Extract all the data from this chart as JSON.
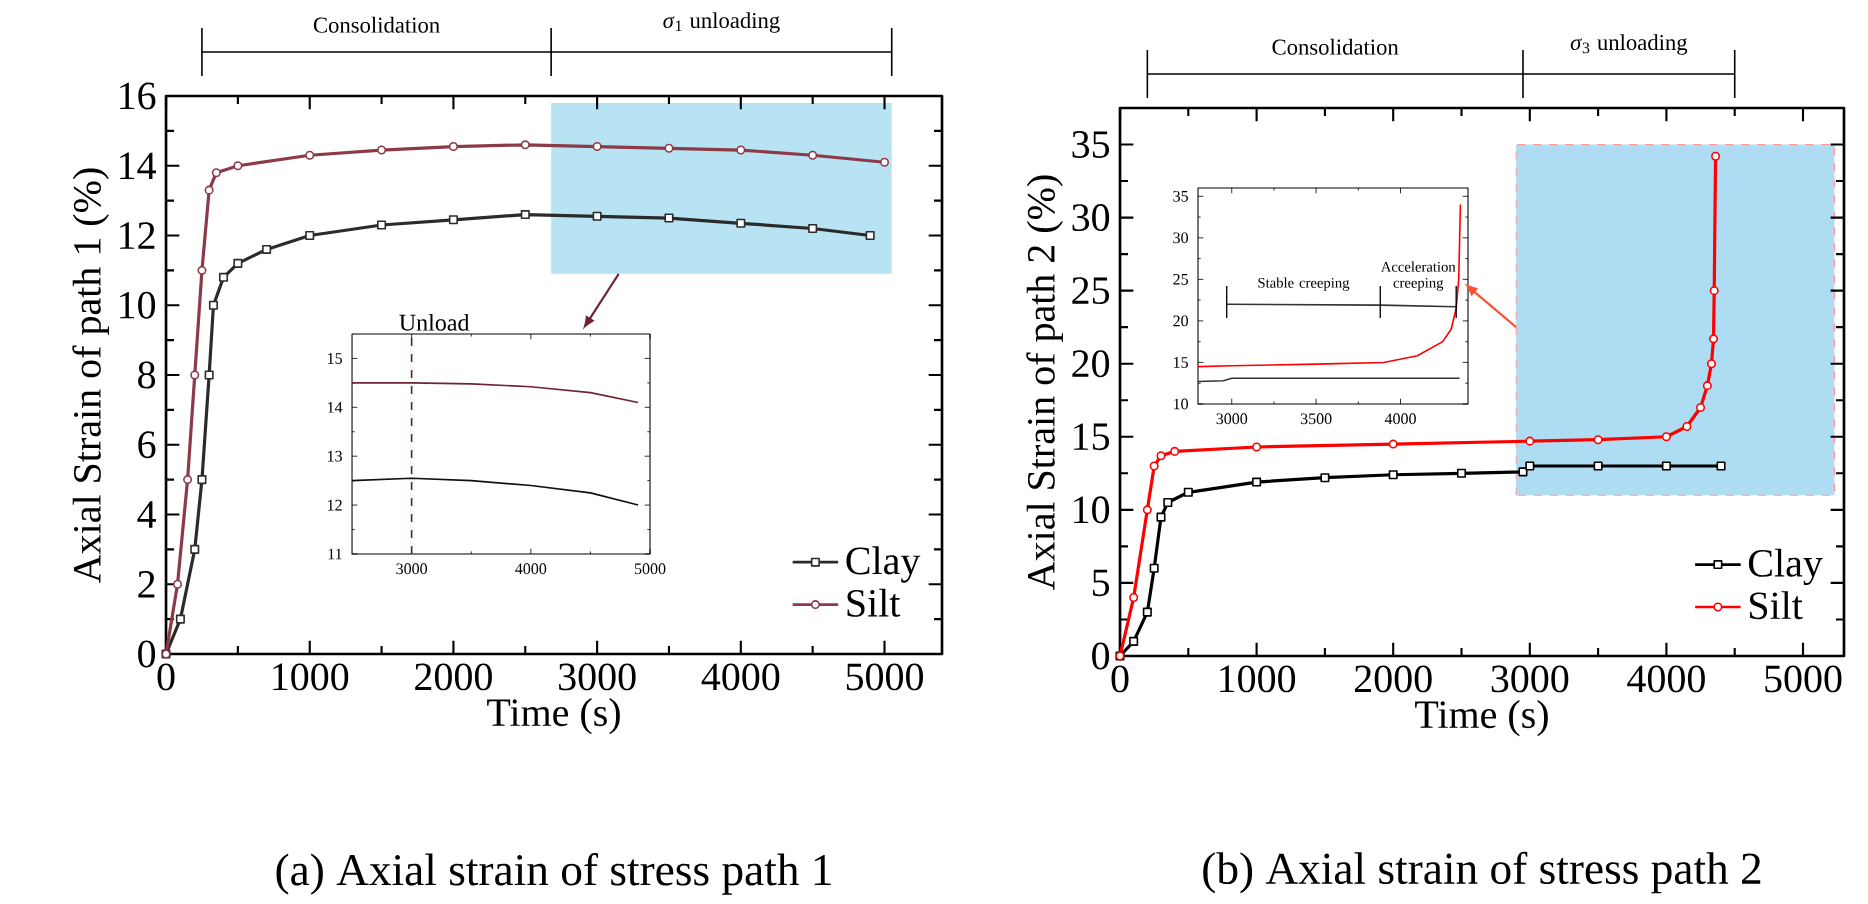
{
  "chart_data": [
    {
      "type": "line",
      "title": "(a) Axial strain of stress path 1",
      "xlabel": "Time (s)",
      "ylabel": "Axial Strain of path 1 (%)",
      "xlim": [
        0,
        5400
      ],
      "ylim": [
        0,
        16
      ],
      "xticks": [
        0,
        1000,
        2000,
        3000,
        4000,
        5000
      ],
      "yticks": [
        0,
        2,
        4,
        6,
        8,
        10,
        12,
        14,
        16
      ],
      "legend": "bottom right",
      "annotations": [
        "Consolidation",
        "*σ*$_{1}$ unloading"
      ],
      "series": [
        {
          "name": "Clay",
          "color": "#2b2b2b",
          "marker": "square",
          "x": [
            0,
            100,
            200,
            250,
            300,
            330,
            400,
            500,
            700,
            1000,
            1500,
            2000,
            2500,
            3000,
            3500,
            4000,
            4500,
            4900
          ],
          "values": [
            0,
            1,
            3,
            5,
            8,
            10,
            10.8,
            11.2,
            11.6,
            12.0,
            12.3,
            12.45,
            12.6,
            12.55,
            12.5,
            12.35,
            12.2,
            12.0
          ]
        },
        {
          "name": "Silt",
          "color": "#8c3a48",
          "marker": "circle",
          "x": [
            0,
            80,
            150,
            200,
            250,
            300,
            350,
            500,
            1000,
            1500,
            2000,
            2500,
            3000,
            3500,
            4000,
            4500,
            5000
          ],
          "values": [
            0,
            2,
            5,
            8,
            11,
            13.3,
            13.8,
            14.0,
            14.3,
            14.45,
            14.55,
            14.6,
            14.55,
            14.5,
            14.45,
            14.3,
            14.1
          ]
        }
      ]
    },
    {
      "type": "line",
      "xlim": [
        2500,
        5000
      ],
      "ylim": [
        11,
        15.5
      ],
      "xticks": [
        3000,
        4000,
        5000
      ],
      "yticks": [
        11,
        12,
        13,
        14,
        15
      ],
      "ref_lines": [
        {
          "axis": "x",
          "value": 3000,
          "label": "Unload",
          "line_style": "dashed",
          "color": "#5a2030"
        }
      ],
      "series": [
        {
          "color": "#111111",
          "x": [
            2500,
            3000,
            3500,
            4000,
            4500,
            4900
          ],
          "values": [
            12.5,
            12.55,
            12.5,
            12.4,
            12.25,
            12.0
          ]
        },
        {
          "color": "#6e2434",
          "x": [
            2500,
            3000,
            3500,
            4000,
            4500,
            4900
          ],
          "values": [
            14.5,
            14.5,
            14.48,
            14.42,
            14.3,
            14.1
          ]
        }
      ]
    },
    {
      "type": "line",
      "title": "(b) Axial strain of stress path 2",
      "xlabel": "Time (s)",
      "ylabel": "Axial Strain of path 2 (%)",
      "xlim": [
        0,
        5300
      ],
      "ylim": [
        0,
        37.5
      ],
      "xticks": [
        0,
        1000,
        2000,
        3000,
        4000,
        5000
      ],
      "yticks": [
        0,
        5,
        10,
        15,
        20,
        25,
        30,
        35
      ],
      "legend": "bottom right",
      "annotations": [
        "Consolidation",
        "*σ*$_{3}$ unloading"
      ],
      "series": [
        {
          "name": "Clay",
          "color": "#000000",
          "marker": "square",
          "x": [
            0,
            100,
            200,
            250,
            300,
            350,
            500,
            1000,
            1500,
            2000,
            2500,
            2950,
            3000,
            3500,
            4000,
            4400
          ],
          "values": [
            0,
            1,
            3,
            6,
            9.5,
            10.5,
            11.2,
            11.9,
            12.2,
            12.4,
            12.5,
            12.6,
            13.0,
            13.0,
            13.0,
            13.0
          ]
        },
        {
          "name": "Silt",
          "color": "#ff0000",
          "marker": "circle",
          "x": [
            0,
            100,
            200,
            250,
            300,
            400,
            1000,
            2000,
            3000,
            3500,
            4000,
            4150,
            4250,
            4300,
            4330,
            4345,
            4350,
            4360
          ],
          "values": [
            0,
            4,
            10,
            13,
            13.7,
            14.0,
            14.3,
            14.5,
            14.7,
            14.8,
            15.0,
            15.7,
            17,
            18.5,
            20,
            21.7,
            25,
            34.2
          ]
        }
      ]
    },
    {
      "type": "line",
      "xlim": [
        2800,
        4400
      ],
      "ylim": [
        10,
        36
      ],
      "xticks": [
        3000,
        3500,
        4000
      ],
      "yticks": [
        10,
        15,
        20,
        25,
        30,
        35
      ],
      "annotations": [
        "Stable creeping",
        "Acceleration creeping"
      ],
      "series": [
        {
          "color": "#333333",
          "x": [
            2800,
            2950,
            3000,
            3500,
            4000,
            4350
          ],
          "values": [
            12.7,
            12.8,
            13.1,
            13.1,
            13.1,
            13.1
          ]
        },
        {
          "color": "#ff0000",
          "x": [
            2800,
            3000,
            3500,
            3900,
            4100,
            4250,
            4300,
            4330,
            4345,
            4355
          ],
          "values": [
            14.5,
            14.6,
            14.8,
            15.0,
            15.8,
            17.5,
            19,
            21.5,
            25,
            34
          ]
        },
        {
          "color": "#333333",
          "x": [
            2970,
            3880,
            4330
          ],
          "values": [
            22,
            21.9,
            21.7
          ]
        }
      ]
    }
  ]
}
